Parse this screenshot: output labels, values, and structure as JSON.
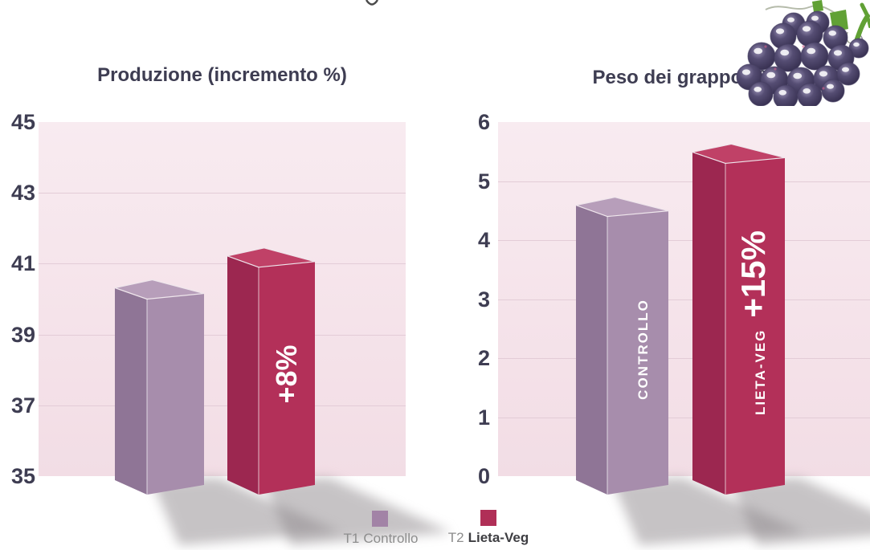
{
  "legend": {
    "items": [
      {
        "prefix": "T1",
        "name": "Controllo",
        "color": "#a283a6"
      },
      {
        "prefix": "T2",
        "name": "Lieta-Veg",
        "color": "#b02f57"
      }
    ]
  },
  "chart_data": [
    {
      "type": "bar",
      "title": "Produzione (incremento %)",
      "ylim": [
        35,
        45
      ],
      "yticks": [
        35,
        37,
        39,
        41,
        43,
        45
      ],
      "grid": true,
      "legend_position": "bottom",
      "series": [
        {
          "name": "T1 Controllo",
          "value": 40.0,
          "face_label": null,
          "annotation": null,
          "colors": {
            "front": "#a78dac",
            "side": "#8f7596",
            "top": "#b79eba"
          }
        },
        {
          "name": "T2 Lieta-Veg",
          "value": 40.9,
          "face_label": null,
          "annotation": "+8%",
          "colors": {
            "front": "#b33059",
            "side": "#9c2750",
            "top": "#c04167"
          }
        }
      ]
    },
    {
      "type": "bar",
      "title": "Peso dei grappoli %",
      "ylim": [
        0,
        6
      ],
      "yticks": [
        0,
        1,
        2,
        3,
        4,
        5,
        6
      ],
      "grid": true,
      "legend_position": "bottom",
      "series": [
        {
          "name": "T1 Controllo",
          "value": 4.4,
          "face_label": "CONTROLLO",
          "annotation": null,
          "colors": {
            "front": "#a78dac",
            "side": "#8f7596",
            "top": "#b79eba"
          }
        },
        {
          "name": "T2 Lieta-Veg",
          "value": 5.3,
          "face_label": "LIETA-VEG",
          "annotation": "+15%",
          "colors": {
            "front": "#b33059",
            "side": "#9c2750",
            "top": "#c04167"
          }
        }
      ]
    }
  ],
  "palette": {
    "title_color": "#3e3d52",
    "axis_label_color": "#3e3d52",
    "plot_bg_top": "#f8ebf0",
    "plot_bg_bottom": "#f2dde5",
    "gridline": "#e3ccd7",
    "bar_shadow": "#8e888c",
    "legend_text": "#8d8d8d",
    "legend_bold_text": "#3e3e42",
    "bar_label_text": "#ffffff",
    "grape_body": "#3a3351",
    "grape_stem_green": "#61a135"
  },
  "decor": {
    "grapes_icon": "grape-cluster-illustration",
    "top_fragment": "cropped-letter-descender"
  }
}
